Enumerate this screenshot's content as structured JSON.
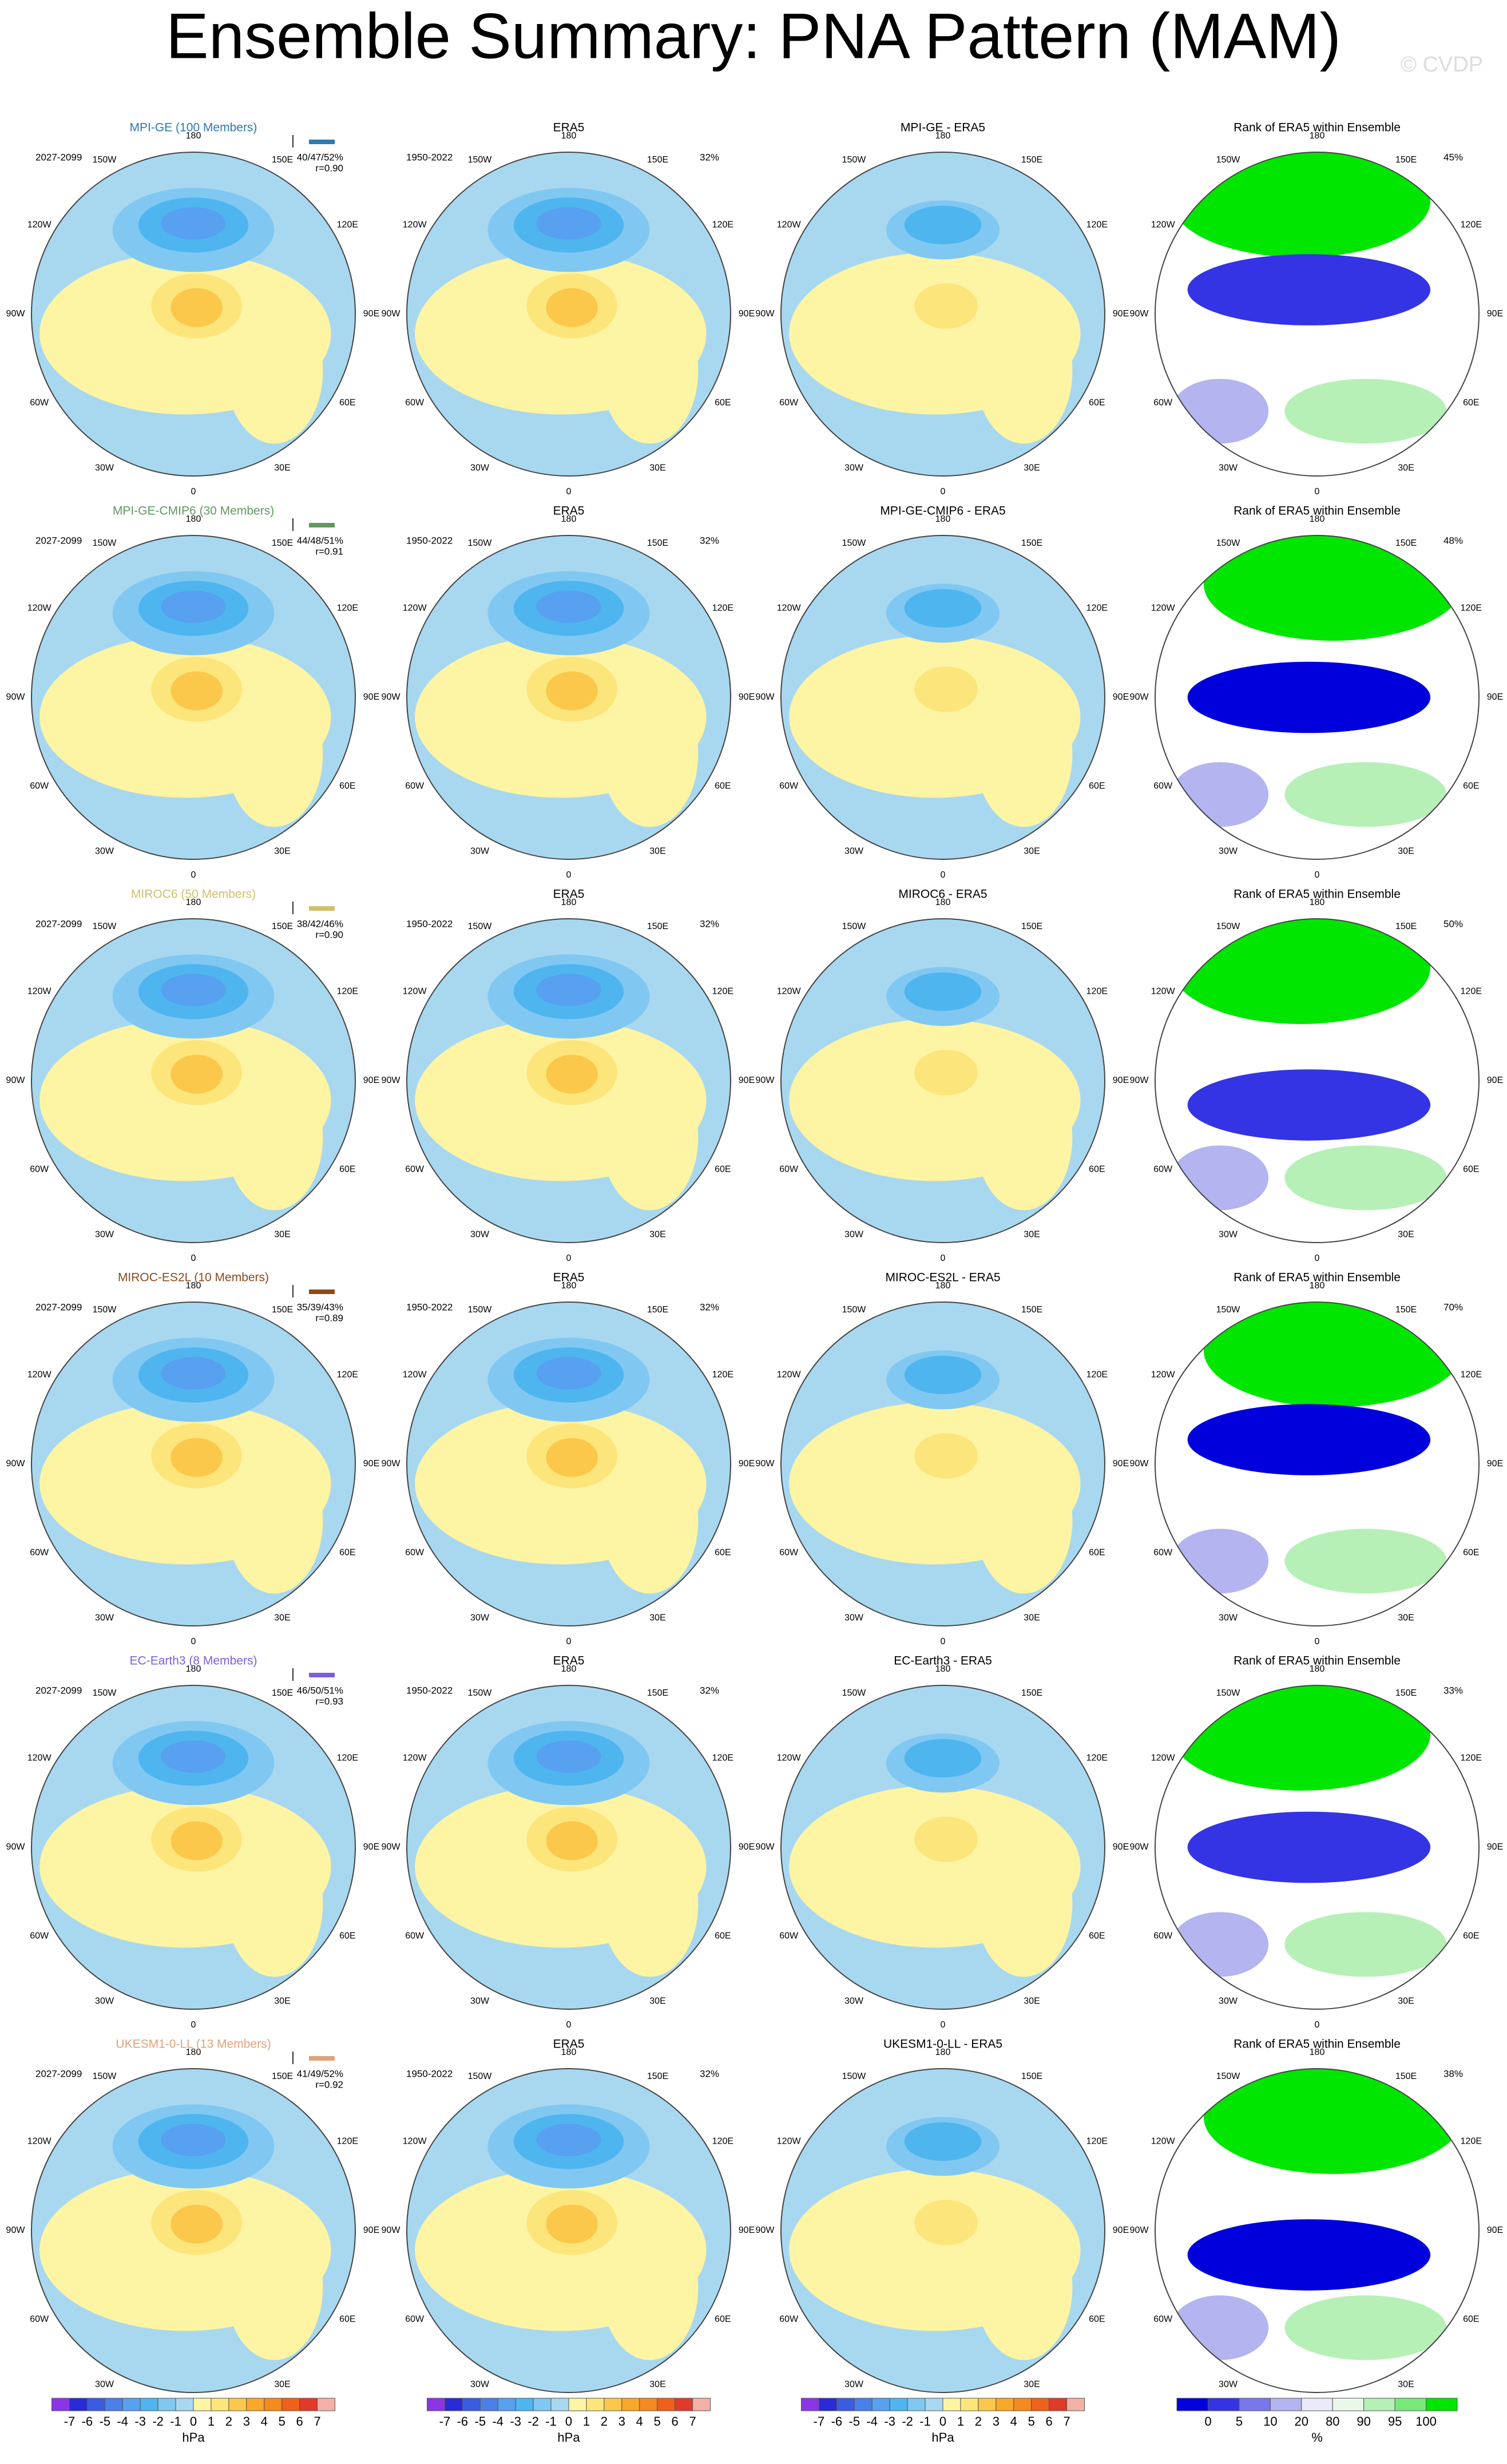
{
  "title": "Ensemble Summary: PNA Pattern (MAM)",
  "watermark": "© CVDP",
  "map_labels": [
    "0",
    "30E",
    "60E",
    "90E",
    "120E",
    "150E",
    "180",
    "150W",
    "120W",
    "90W",
    "60W",
    "30W"
  ],
  "rows": [
    {
      "model": "MPI-GE (100 Members)",
      "color": "#2b7bb0",
      "period": "2027-2099",
      "stats": "40/47/52%",
      "r": "r=0.90",
      "obs_title": "ERA5",
      "obs_period": "1950-2022",
      "obs_pct": "32%",
      "diff_title": "MPI-GE - ERA5",
      "rank_title": "Rank of ERA5 within Ensemble",
      "rank_pct": "45%"
    },
    {
      "model": "MPI-GE-CMIP6 (30 Members)",
      "color": "#5f9a5f",
      "period": "2027-2099",
      "stats": "44/48/51%",
      "r": "r=0.91",
      "obs_title": "ERA5",
      "obs_period": "1950-2022",
      "obs_pct": "32%",
      "diff_title": "MPI-GE-CMIP6 - ERA5",
      "rank_title": "Rank of ERA5 within Ensemble",
      "rank_pct": "48%"
    },
    {
      "model": "MIROC6 (50 Members)",
      "color": "#d2c068",
      "period": "2027-2099",
      "stats": "38/42/46%",
      "r": "r=0.90",
      "obs_title": "ERA5",
      "obs_period": "1950-2022",
      "obs_pct": "32%",
      "diff_title": "MIROC6 - ERA5",
      "rank_title": "Rank of ERA5 within Ensemble",
      "rank_pct": "50%"
    },
    {
      "model": "MIROC-ES2L (10 Members)",
      "color": "#8b4a1c",
      "period": "2027-2099",
      "stats": "35/39/43%",
      "r": "r=0.89",
      "obs_title": "ERA5",
      "obs_period": "1950-2022",
      "obs_pct": "32%",
      "diff_title": "MIROC-ES2L - ERA5",
      "rank_title": "Rank of ERA5 within Ensemble",
      "rank_pct": "70%"
    },
    {
      "model": "EC-Earth3 (8 Members)",
      "color": "#7b5fe0",
      "period": "2027-2099",
      "stats": "46/50/51%",
      "r": "r=0.93",
      "obs_title": "ERA5",
      "obs_period": "1950-2022",
      "obs_pct": "32%",
      "diff_title": "EC-Earth3 - ERA5",
      "rank_title": "Rank of ERA5 within Ensemble",
      "rank_pct": "33%"
    },
    {
      "model": "UKESM1-0-LL (13 Members)",
      "color": "#e0a27a",
      "period": "2027-2099",
      "stats": "41/49/52%",
      "r": "r=0.92",
      "obs_title": "ERA5",
      "obs_period": "1950-2022",
      "obs_pct": "32%",
      "diff_title": "UKESM1-0-LL - ERA5",
      "rank_title": "Rank of ERA5 within Ensemble",
      "rank_pct": "38%"
    }
  ],
  "colorbar": {
    "labels": [
      -7,
      -6,
      -5,
      -4,
      -3,
      -2,
      -1,
      0,
      1,
      2,
      3,
      4,
      5,
      6,
      7
    ],
    "colors": [
      "#8a35e6",
      "#2a2ad6",
      "#3a5ce0",
      "#4a80e8",
      "#58a0f0",
      "#4fb5ef",
      "#80c8f2",
      "#a8d8f0",
      "#fdf4a4",
      "#fce57a",
      "#fbc84c",
      "#f9a82a",
      "#f58a1e",
      "#ef611a",
      "#df3a2a",
      "#f4b0a6"
    ],
    "unit": "hPa"
  },
  "rank_colorbar": {
    "labels": [
      0,
      5,
      10,
      20,
      80,
      90,
      95,
      100
    ],
    "colors": [
      "#0000dc",
      "#3434e4",
      "#7878ea",
      "#b4b4f0",
      "#eaeaf8",
      "#eaf8ea",
      "#b6f0b6",
      "#78e878",
      "#00e600"
    ],
    "unit": "%"
  }
}
